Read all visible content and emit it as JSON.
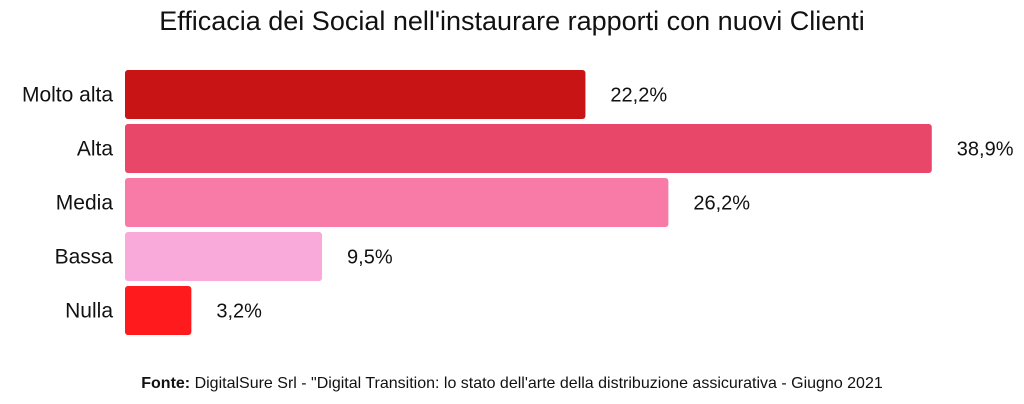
{
  "chart_data": {
    "type": "bar",
    "orientation": "horizontal",
    "title": "Efficacia dei Social nell'instaurare rapporti con nuovi Clienti",
    "categories": [
      "Molto alta",
      "Alta",
      "Media",
      "Bassa",
      "Nulla"
    ],
    "values": [
      22.2,
      38.9,
      26.2,
      9.5,
      3.2
    ],
    "labels": [
      "22,2%",
      "38,9%",
      "26,2%",
      "9,5%",
      "3,2%"
    ],
    "colors": [
      "#C81414",
      "#E8476A",
      "#F77BA6",
      "#F9AADB",
      "#FF1A1E"
    ],
    "xlabel": "",
    "ylabel": "",
    "xlim": [
      0,
      40
    ],
    "grid": false,
    "legend": "none"
  },
  "footer": {
    "source_label": "Fonte:",
    "source_text": " DigitalSure Srl - \"Digital Transition: lo stato dell'arte della distribuzione assicurativa - Giugno 2021"
  }
}
